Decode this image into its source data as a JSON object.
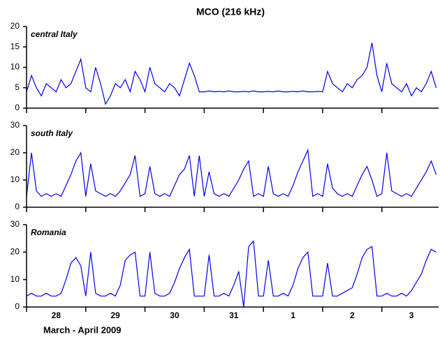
{
  "chart_data": {
    "type": "line",
    "title": "MCO (216 kHz)",
    "xlabel": "March - April 2009",
    "categories": [
      "28",
      "29",
      "30",
      "31",
      "1",
      "2",
      "3"
    ],
    "xlim": [
      0,
      167
    ],
    "xticks": [
      0,
      24,
      48,
      72,
      96,
      120,
      144
    ],
    "x": [
      0,
      2,
      4,
      6,
      8,
      10,
      12,
      14,
      16,
      18,
      20,
      22,
      24,
      26,
      28,
      30,
      32,
      34,
      36,
      38,
      40,
      42,
      44,
      46,
      48,
      50,
      52,
      54,
      56,
      58,
      60,
      62,
      64,
      66,
      68,
      70,
      72,
      74,
      76,
      78,
      80,
      82,
      84,
      86,
      88,
      90,
      92,
      94,
      96,
      98,
      100,
      102,
      104,
      106,
      108,
      110,
      112,
      114,
      116,
      118,
      120,
      122,
      124,
      126,
      128,
      130,
      132,
      134,
      136,
      138,
      140,
      142,
      144,
      146,
      148,
      150,
      152,
      154,
      156,
      158,
      160,
      162,
      164,
      166
    ],
    "series": [
      {
        "name": "central Italy",
        "color": "#0000ee",
        "ylim": [
          0,
          20
        ],
        "yticks": [
          0,
          5,
          10,
          15,
          20
        ],
        "values": [
          4,
          8,
          5,
          3,
          6,
          5,
          4,
          7,
          5,
          6,
          9,
          12,
          5,
          4,
          10,
          6,
          1,
          3,
          6,
          5,
          7,
          4,
          9,
          7,
          4,
          10,
          6,
          5,
          4,
          6,
          5,
          3,
          7,
          11,
          8,
          4,
          4,
          4.2,
          4,
          4.1,
          4,
          4.2,
          4,
          4,
          4.1,
          4,
          4.2,
          4,
          4,
          4.1,
          4,
          4.2,
          4,
          4,
          4.1,
          4,
          4.2,
          4,
          4,
          4.1,
          4,
          9,
          6,
          5,
          4,
          6,
          5,
          7,
          8,
          10,
          16,
          8,
          4,
          11,
          6,
          5,
          4,
          6,
          3,
          5,
          4,
          6,
          9,
          5
        ]
      },
      {
        "name": "south Italy",
        "color": "#0000ee",
        "ylim": [
          0,
          30
        ],
        "yticks": [
          0,
          10,
          20,
          30
        ],
        "values": [
          4,
          20,
          6,
          4,
          5,
          4,
          5,
          4,
          8,
          12,
          17,
          20,
          4,
          16,
          6,
          5,
          4,
          5,
          4,
          6,
          9,
          12,
          19,
          4,
          5,
          15,
          5,
          4,
          5,
          4,
          8,
          12,
          14,
          19,
          4,
          19,
          4,
          13,
          5,
          4,
          5,
          4,
          7,
          10,
          14,
          17,
          4,
          5,
          4,
          15,
          5,
          4,
          5,
          4,
          8,
          13,
          17,
          21,
          4,
          5,
          4,
          16,
          7,
          5,
          4,
          5,
          4,
          8,
          12,
          15,
          10,
          4,
          5,
          20,
          6,
          5,
          4,
          5,
          4,
          7,
          10,
          13,
          17,
          12
        ]
      },
      {
        "name": "Romania",
        "color": "#0000ee",
        "ylim": [
          0,
          30
        ],
        "yticks": [
          0,
          10,
          20,
          30
        ],
        "values": [
          4,
          5,
          4,
          4,
          5,
          4,
          4,
          5,
          10,
          16,
          18,
          15,
          4,
          20,
          5,
          4,
          4,
          5,
          4,
          8,
          17,
          19,
          20,
          4,
          4,
          20,
          5,
          4,
          4,
          5,
          9,
          14,
          18,
          21,
          4,
          4,
          4,
          19,
          4,
          4,
          5,
          4,
          8,
          13,
          0,
          22,
          24,
          4,
          4,
          17,
          4,
          4,
          5,
          4,
          8,
          14,
          18,
          20,
          4,
          4,
          4,
          16,
          4,
          4,
          5,
          6,
          7,
          12,
          18,
          21,
          22,
          4,
          4,
          5,
          4,
          4,
          5,
          4,
          6,
          9,
          12,
          17,
          21,
          20
        ]
      }
    ]
  }
}
